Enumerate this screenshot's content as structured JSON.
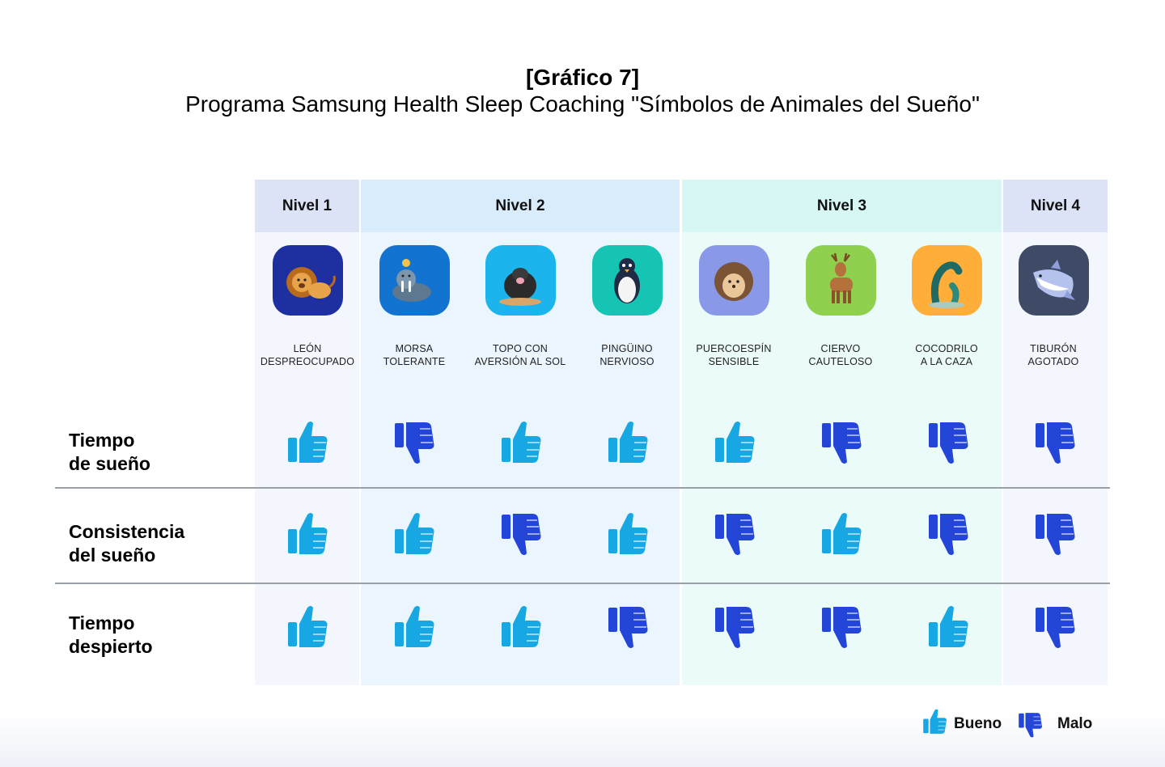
{
  "title": {
    "line1": "[Gráfico 7]",
    "line2": "Programa Samsung Health Sleep Coaching  \"Símbolos de Animales del Sueño\""
  },
  "levels": [
    {
      "label": "Nivel 1",
      "head_color": "#dde3f7",
      "body_color": "#f4f6fd"
    },
    {
      "label": "Nivel 2",
      "head_color": "#d8ecfb",
      "body_color": "#eaf5fd"
    },
    {
      "label": "Nivel 3",
      "head_color": "#d7f7f4",
      "body_color": "#ebfbfa"
    },
    {
      "label": "Nivel 4",
      "head_color": "#dde3f7",
      "body_color": "#f4f6fd"
    }
  ],
  "animals": [
    {
      "line1": "LEÓN",
      "line2": "DESPREOCUPADO",
      "icon": "lion-icon",
      "tile_color": "#1e2fa0"
    },
    {
      "line1": "MORSA",
      "line2": "TOLERANTE",
      "icon": "walrus-icon",
      "tile_color": "#1273d0"
    },
    {
      "line1": "TOPO CON",
      "line2": "AVERSIÓN AL SOL",
      "icon": "mole-icon",
      "tile_color": "#1bb4ec"
    },
    {
      "line1": "PINGÜINO",
      "line2": "NERVIOSO",
      "icon": "penguin-icon",
      "tile_color": "#16c4b3"
    },
    {
      "line1": "PUERCOESPÍN",
      "line2": "SENSIBLE",
      "icon": "hedgehog-icon",
      "tile_color": "#8a98e8"
    },
    {
      "line1": "CIERVO",
      "line2": "CAUTELOSO",
      "icon": "deer-icon",
      "tile_color": "#8fd14f"
    },
    {
      "line1": "COCODRILO",
      "line2": "A LA CAZA",
      "icon": "crocodile-icon",
      "tile_color": "#ffae3a"
    },
    {
      "line1": "TIBURÓN",
      "line2": "AGOTADO",
      "icon": "shark-icon",
      "tile_color": "#3e4a66"
    }
  ],
  "rows": [
    {
      "line1": "Tiempo",
      "line2": "de sueño",
      "values": [
        "good",
        "bad",
        "good",
        "good",
        "good",
        "bad",
        "bad",
        "bad"
      ]
    },
    {
      "line1": "Consistencia",
      "line2": "del sueño",
      "values": [
        "good",
        "good",
        "bad",
        "good",
        "bad",
        "good",
        "bad",
        "bad"
      ]
    },
    {
      "line1": "Tiempo",
      "line2": "despierto",
      "values": [
        "good",
        "good",
        "good",
        "bad",
        "bad",
        "bad",
        "good",
        "bad"
      ]
    }
  ],
  "legend": {
    "good": "Bueno",
    "bad": "Malo"
  },
  "colors": {
    "good": "#17a8e3",
    "bad": "#2346d8"
  }
}
